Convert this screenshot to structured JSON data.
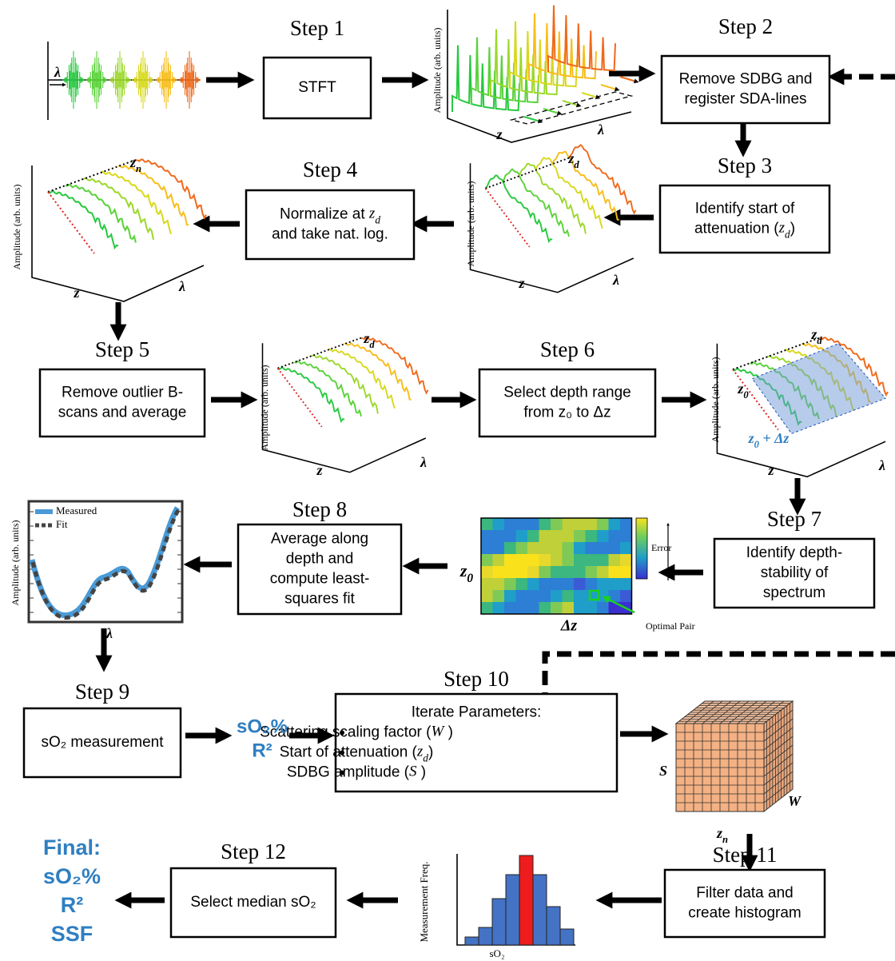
{
  "steps": [
    {
      "title": "Step 1",
      "lines": [
        "STFT"
      ]
    },
    {
      "title": "Step 2",
      "lines": [
        "Remove SDBG and",
        "register SDA-lines"
      ]
    },
    {
      "title": "Step 3",
      "lines": [
        "Identify start of",
        [
          {
            "text": "attenuation ("
          },
          {
            "text": "z",
            "sub": "d"
          },
          {
            "text": ")"
          }
        ]
      ]
    },
    {
      "title": "Step 4",
      "lines": [
        [
          {
            "text": "Normalize at "
          },
          {
            "text": "z",
            "sub": "d"
          }
        ],
        "and take nat. log."
      ]
    },
    {
      "title": "Step 5",
      "lines": [
        "Remove outlier B-",
        "scans and average"
      ]
    },
    {
      "title": "Step 6",
      "lines": [
        "Select depth range",
        "from z₀ to Δz"
      ]
    },
    {
      "title": "Step 7",
      "lines": [
        "Identify depth-",
        "stability of",
        "spectrum"
      ]
    },
    {
      "title": "Step 8",
      "lines": [
        "Average along",
        "depth and",
        "compute least-",
        "squares fit"
      ]
    },
    {
      "title": "Step 9",
      "lines": [
        "sO₂  measurement"
      ]
    },
    {
      "title": "Step 10",
      "lines": [
        "Iterate Parameters:"
      ],
      "bullets": [
        [
          {
            "text": "Scattering scaling factor ("
          },
          {
            "text": "W"
          },
          {
            "text": " )"
          }
        ],
        [
          {
            "text": "Start of attenuation ("
          },
          {
            "text": "z",
            "sub": "d"
          },
          {
            "text": ")"
          }
        ],
        [
          {
            "text": "SDBG amplitude ("
          },
          {
            "text": "S"
          },
          {
            "text": " )"
          }
        ]
      ]
    },
    {
      "title": "Step 11",
      "lines": [
        "Filter data and",
        "create histogram"
      ]
    },
    {
      "title": "Step 12",
      "lines": [
        "Select median sO₂"
      ]
    }
  ],
  "plots": {
    "amplitude": "Amplitude (arb. units)",
    "z": "z",
    "lambda": "λ",
    "z_n": [
      {
        "text": "z",
        "sub": "n"
      }
    ],
    "z_d": [
      {
        "text": "z",
        "sub": "d"
      }
    ],
    "z_0": [
      {
        "text": "z",
        "sub": "0"
      }
    ],
    "z0_dz": [
      {
        "text": "z",
        "sub": "0"
      },
      {
        "text": " + Δz"
      }
    ],
    "delta_z": "Δz",
    "error": "Error",
    "optimal_pair": "Optimal Pair",
    "measured": "Measured",
    "fit": "Fit",
    "freq": "Measurement Freq.",
    "so2": "sO₂",
    "S": "S",
    "W": "W"
  },
  "outputs": {
    "so2": "sO₂%",
    "r2": "R²"
  },
  "final": [
    "Final:",
    "sO₂%",
    "R²",
    "SSF"
  ]
}
